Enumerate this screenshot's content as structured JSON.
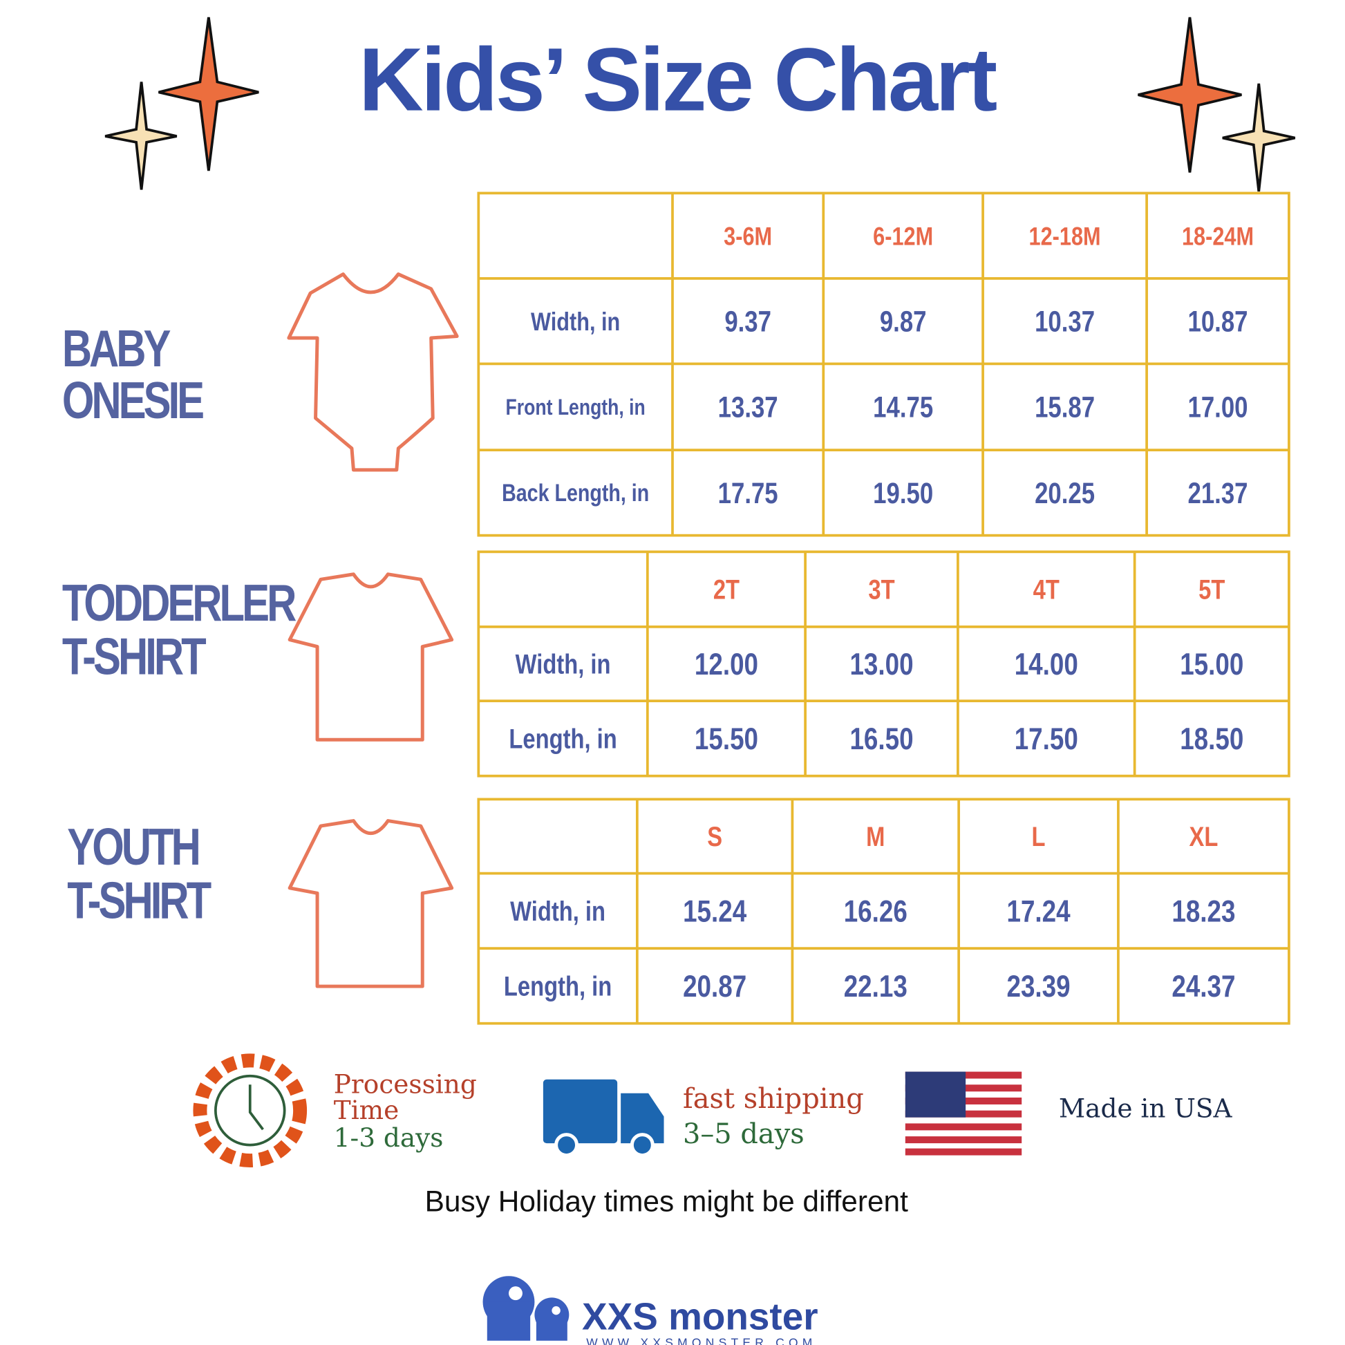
{
  "title": "Kids’ Size Chart",
  "sections": [
    {
      "label_lines": [
        "BABY",
        "ONESIE"
      ],
      "sizes": [
        "3-6M",
        "6-12M",
        "12-18M",
        "18-24M"
      ],
      "rows": [
        {
          "name": "Width, in",
          "values": [
            "9.37",
            "9.87",
            "10.37",
            "10.87"
          ]
        },
        {
          "name": "Front Length, in",
          "values": [
            "13.37",
            "14.75",
            "15.87",
            "17.00"
          ]
        },
        {
          "name": "Back Length, in",
          "values": [
            "17.75",
            "19.50",
            "20.25",
            "21.37"
          ]
        }
      ]
    },
    {
      "label_lines": [
        "TODDERLER",
        "T-SHIRT"
      ],
      "sizes": [
        "2T",
        "3T",
        "4T",
        "5T"
      ],
      "rows": [
        {
          "name": "Width, in",
          "values": [
            "12.00",
            "13.00",
            "14.00",
            "15.00"
          ]
        },
        {
          "name": "Length, in",
          "values": [
            "15.50",
            "16.50",
            "17.50",
            "18.50"
          ]
        }
      ]
    },
    {
      "label_lines": [
        "YOUTH",
        "T-SHIRT"
      ],
      "sizes": [
        "S",
        "M",
        "L",
        "XL"
      ],
      "rows": [
        {
          "name": "Width, in",
          "values": [
            "15.24",
            "16.26",
            "17.24",
            "18.23"
          ]
        },
        {
          "name": "Length, in",
          "values": [
            "20.87",
            "22.13",
            "23.39",
            "24.37"
          ]
        }
      ]
    }
  ],
  "features": [
    {
      "lines": [
        "Processing",
        "Time",
        "1-3 days"
      ]
    },
    {
      "lines": [
        "fast shipping",
        "3–5 days"
      ]
    },
    {
      "lines": [
        "Made in USA"
      ]
    }
  ],
  "note": "Busy Holiday times might be different",
  "brand": {
    "name": "XXS monster",
    "url": "WWW.XXSMONSTER.COM"
  }
}
